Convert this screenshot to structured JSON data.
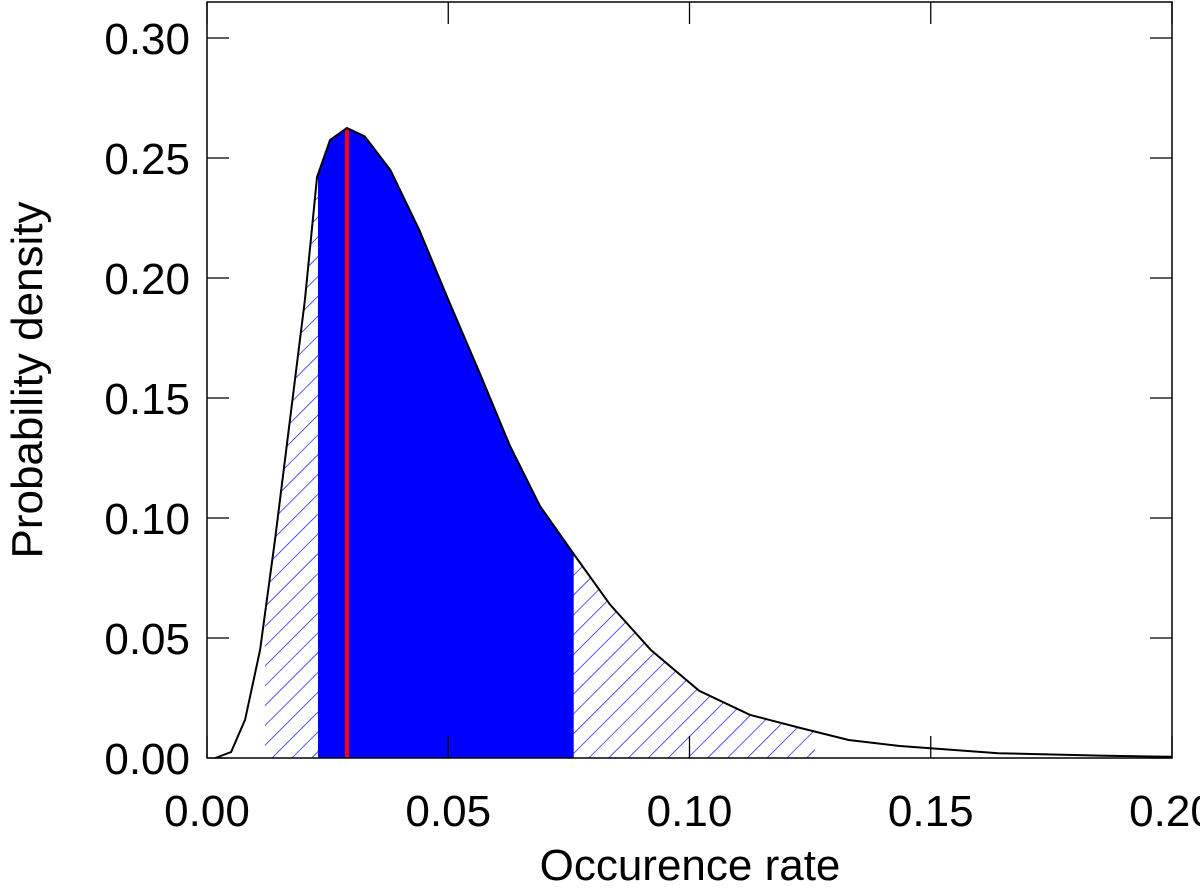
{
  "chart_data": {
    "type": "density",
    "xlabel": "Occurence rate",
    "ylabel": "Probability density",
    "x": [
      0.0017,
      0.005,
      0.0079,
      0.011,
      0.0141,
      0.0172,
      0.0203,
      0.0228,
      0.0255,
      0.029,
      0.0327,
      0.038,
      0.044,
      0.05,
      0.0566,
      0.0628,
      0.069,
      0.076,
      0.0835,
      0.092,
      0.102,
      0.1125,
      0.123,
      0.133,
      0.1436,
      0.164,
      0.185,
      0.2
    ],
    "values": [
      0,
      0.0025,
      0.016,
      0.045,
      0.091,
      0.141,
      0.191,
      0.242,
      0.2575,
      0.2625,
      0.259,
      0.245,
      0.22,
      0.191,
      0.16,
      0.13,
      0.105,
      0.085,
      0.064,
      0.045,
      0.028,
      0.018,
      0.0125,
      0.0075,
      0.005,
      0.002,
      0.001,
      0.0005
    ],
    "color": "#000000",
    "hatched_range": [
      0.012,
      0.126
    ],
    "hatch_color": "#0000ff",
    "shaded_range": [
      0.023,
      0.076
    ],
    "shade_color": "#0000ff",
    "mode": 0.029,
    "mode_color": "#ff0000",
    "xlim": [
      0,
      0.2
    ],
    "ylim": [
      0,
      0.315
    ],
    "xticks": [
      {
        "value": 0,
        "label": "0.00"
      },
      {
        "value": 0.05,
        "label": "0.05"
      },
      {
        "value": 0.1,
        "label": "0.10"
      },
      {
        "value": 0.15,
        "label": "0.15"
      },
      {
        "value": 0.2,
        "label": "0.20"
      }
    ],
    "yticks": [
      {
        "value": 0,
        "label": "0.00"
      },
      {
        "value": 0.05,
        "label": "0.05"
      },
      {
        "value": 0.1,
        "label": "0.10"
      },
      {
        "value": 0.15,
        "label": "0.15"
      },
      {
        "value": 0.2,
        "label": "0.20"
      },
      {
        "value": 0.25,
        "label": "0.25"
      },
      {
        "value": 0.3,
        "label": "0.30"
      }
    ]
  }
}
